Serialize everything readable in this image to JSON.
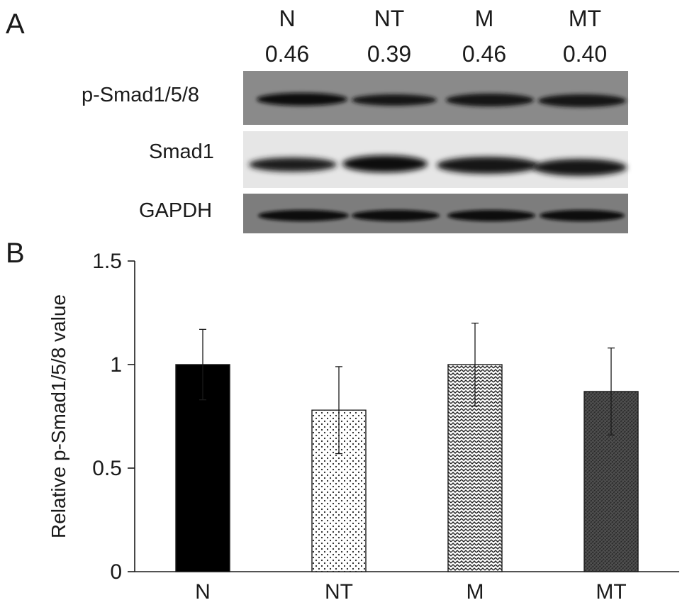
{
  "panel_a": {
    "letter": "A",
    "lanes": [
      {
        "label": "N",
        "value": "0.46"
      },
      {
        "label": "NT",
        "value": "0.39"
      },
      {
        "label": "M",
        "value": "0.46"
      },
      {
        "label": "MT",
        "value": "0.40"
      }
    ],
    "rows": [
      {
        "label": "p-Smad1/5/8",
        "background": "#8a8a8a",
        "band": "#111111"
      },
      {
        "label": "Smad1",
        "background": "#e6e6e6",
        "band": "#161616"
      },
      {
        "label": "GAPDH",
        "background": "#7d7d7d",
        "band": "#0c0c0c"
      }
    ]
  },
  "panel_b": {
    "letter": "B"
  },
  "chart_data": {
    "type": "bar",
    "categories": [
      "N",
      "NT",
      "M",
      "MT"
    ],
    "values": [
      1.0,
      0.78,
      1.0,
      0.87
    ],
    "errors": [
      0.17,
      0.21,
      0.2,
      0.21
    ],
    "ylabel": "Relative p-Smad1/5/8 value",
    "xlabel": "",
    "ylim": [
      0,
      1.5
    ],
    "yticks": [
      "0",
      "0.5",
      "1",
      "1.5"
    ],
    "ytick_values": [
      0,
      0.5,
      1,
      1.5
    ],
    "fills": [
      "solid-black",
      "dots",
      "zigzag",
      "dark-hatch"
    ],
    "grid": false,
    "legend": "none"
  }
}
